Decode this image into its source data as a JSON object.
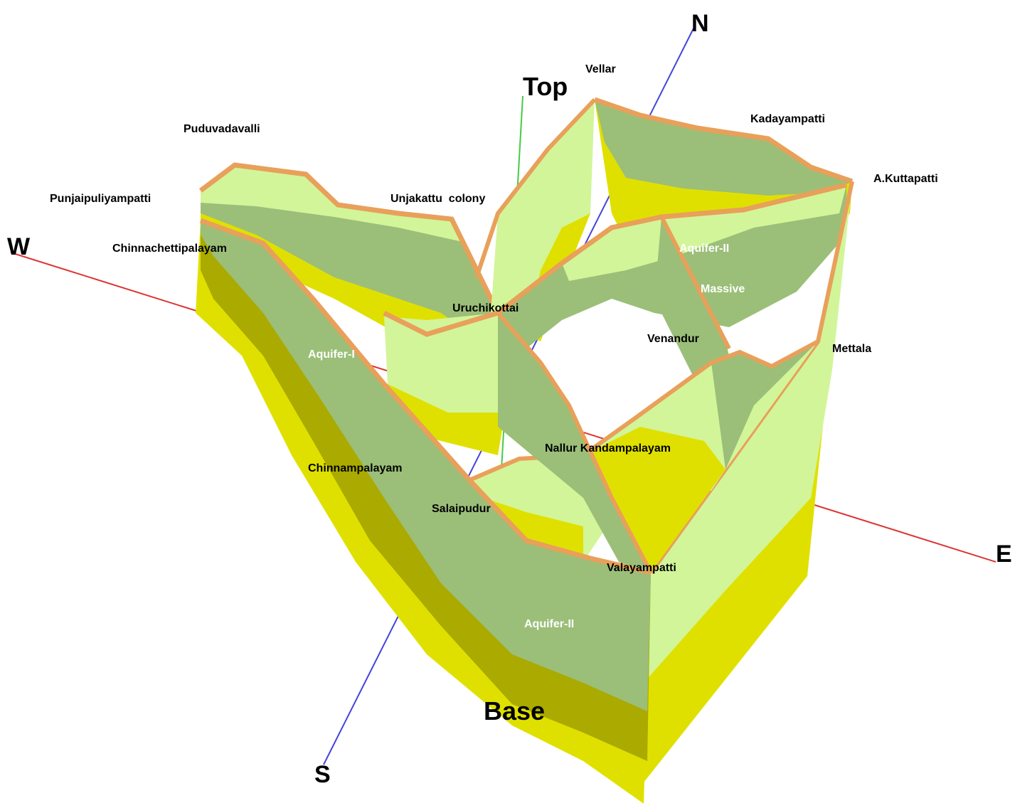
{
  "axes": {
    "north": "N",
    "south": "S",
    "east": "E",
    "west": "W",
    "top": "Top",
    "base": "Base"
  },
  "places": {
    "vellar": "Vellar",
    "kadayampatti": "Kadayampatti",
    "a_kuttapatti": "A.Kuttapatti",
    "puduvadavalli": "Puduvadavalli",
    "punjaipuliyampatti": "Punjaipuliyampatti",
    "unjakattu_colony": "Unjakattu  colony",
    "chinnachettipalayam": "Chinnachettipalayam",
    "uruchikottai": "Uruchikottai",
    "venandur": "Venandur",
    "mettala": "Mettala",
    "nallur_kandampalayam": "Nallur Kandampalayam",
    "chinnampalayam": "Chinnampalayam",
    "salaipudur": "Salaipudur",
    "valayampatti": "Valayampatti"
  },
  "layers": {
    "aquifer_1": "Aquifer-I",
    "aquifer_2_north": "Aquifer-II",
    "massive": "Massive",
    "aquifer_2_south": "Aquifer-II"
  },
  "colors": {
    "top_surface": "#e8a05a",
    "aquifer_1": "#d2f59a",
    "aquifer_2": "#9bbf78",
    "massive": "#e0e000",
    "massive_shade": "#aaaa00",
    "ns_axis": "#4444dd",
    "ew_axis": "#dd3333",
    "vertical_axis": "#44cc44"
  }
}
